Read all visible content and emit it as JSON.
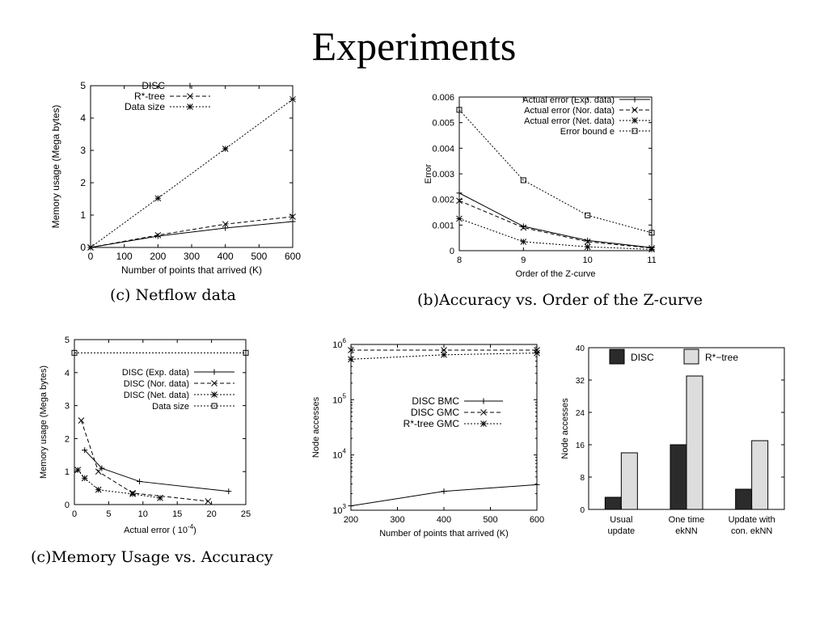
{
  "slide": {
    "title": "Experiments"
  },
  "colors": {
    "ink": "#000000",
    "bar_dark": "#2b2b2b",
    "bar_light": "#dddddd",
    "background": "#ffffff"
  },
  "chart_data": [
    {
      "type": "line",
      "caption": "(c) Netflow data",
      "xlabel": "Number of points that arrived (K)",
      "ylabel": "Memory usage (Mega bytes)",
      "xlim": [
        0,
        600
      ],
      "ylim": [
        0,
        5
      ],
      "xticks": [
        0,
        100,
        200,
        300,
        400,
        500,
        600
      ],
      "yticks": [
        0,
        1,
        2,
        3,
        4,
        5
      ],
      "legend_position": "top-left",
      "series": [
        {
          "name": "DISC",
          "marker": "plus",
          "dash": "solid",
          "x": [
            0,
            200,
            400,
            600
          ],
          "y": [
            0,
            0.35,
            0.6,
            0.8
          ]
        },
        {
          "name": "R*-tree",
          "marker": "cross",
          "dash": "dashed",
          "x": [
            0,
            200,
            400,
            600
          ],
          "y": [
            0,
            0.38,
            0.72,
            0.95
          ]
        },
        {
          "name": "Data size",
          "marker": "star",
          "dash": "dotted",
          "x": [
            0,
            200,
            400,
            600
          ],
          "y": [
            0,
            1.52,
            3.05,
            4.58
          ]
        }
      ]
    },
    {
      "type": "line",
      "caption": "(b)Accuracy vs. Order of the Z-curve",
      "xlabel": "Order of the Z-curve",
      "ylabel": "Error",
      "xlim": [
        8,
        11
      ],
      "ylim": [
        0,
        0.006
      ],
      "xticks": [
        8,
        9,
        10,
        11
      ],
      "yticks": [
        0,
        0.001,
        0.002,
        0.003,
        0.004,
        0.005,
        0.006
      ],
      "ytick_labels": [
        "0",
        "0.001",
        "0.002",
        "0.003",
        "0.004",
        "0.005",
        "0.006"
      ],
      "legend_position": "top-right",
      "series": [
        {
          "name": "Actual error (Exp. data)",
          "marker": "plus",
          "dash": "solid",
          "x": [
            8,
            9,
            10,
            11
          ],
          "y": [
            0.00225,
            0.00095,
            0.0004,
            0.00012
          ]
        },
        {
          "name": "Actual error (Nor. data)",
          "marker": "cross",
          "dash": "dashed",
          "x": [
            8,
            9,
            10,
            11
          ],
          "y": [
            0.00195,
            0.0009,
            0.00035,
            0.0001
          ]
        },
        {
          "name": "Actual error (Net. data)",
          "marker": "star",
          "dash": "dotted",
          "x": [
            8,
            9,
            10,
            11
          ],
          "y": [
            0.00125,
            0.00035,
            0.00015,
            5e-05
          ]
        },
        {
          "name": "Error bound e",
          "marker": "square",
          "dash": "dotted",
          "x": [
            8,
            9,
            10,
            11
          ],
          "y": [
            0.0055,
            0.00275,
            0.00138,
            0.0007
          ]
        }
      ]
    },
    {
      "type": "line",
      "caption": "(c)Memory Usage vs. Accuracy",
      "xlabel": "Actual error ( 10",
      "xlabel_sup": "-4",
      "xlabel_end": ")",
      "ylabel": "Memory usage (Mega bytes)",
      "xlim": [
        0,
        25
      ],
      "ylim": [
        0,
        5
      ],
      "xticks": [
        0,
        5,
        10,
        15,
        20,
        25
      ],
      "yticks": [
        0,
        1,
        2,
        3,
        4,
        5
      ],
      "legend_position": "right",
      "series": [
        {
          "name": "DISC (Exp. data)",
          "marker": "plus",
          "dash": "solid",
          "x": [
            1.5,
            4,
            9.5,
            22.5
          ],
          "y": [
            1.65,
            1.1,
            0.7,
            0.4
          ]
        },
        {
          "name": "DISC (Nor. data)",
          "marker": "cross",
          "dash": "dashed",
          "x": [
            1,
            3.5,
            8.5,
            19.5
          ],
          "y": [
            2.55,
            1.0,
            0.35,
            0.1
          ]
        },
        {
          "name": "DISC (Net. data)",
          "marker": "star",
          "dash": "dotted",
          "x": [
            0.5,
            1.5,
            3.5,
            8.5,
            12.5
          ],
          "y": [
            1.05,
            0.8,
            0.45,
            0.32,
            0.2
          ]
        },
        {
          "name": "Data size",
          "marker": "square",
          "dash": "dotted",
          "x": [
            0,
            25
          ],
          "y": [
            4.6,
            4.6
          ]
        }
      ]
    },
    {
      "type": "line",
      "caption": "",
      "xlabel": "Number of points that arrived (K)",
      "ylabel": "Node accesses",
      "log_y": true,
      "xlim": [
        200,
        600
      ],
      "ylim": [
        1000,
        1000000
      ],
      "xticks": [
        200,
        300,
        400,
        500,
        600
      ],
      "yticks": [
        1000,
        10000,
        100000,
        1000000
      ],
      "ytick_exponents": [
        "3",
        "4",
        "5",
        "6"
      ],
      "ytick_base": "10",
      "legend_position": "center-right",
      "series": [
        {
          "name": "DISC BMC",
          "marker": "plus",
          "dash": "solid",
          "x": [
            200,
            400,
            600
          ],
          "y": [
            1200,
            2200,
            2900
          ]
        },
        {
          "name": "DISC GMC",
          "marker": "cross",
          "dash": "dashed",
          "x": [
            200,
            400,
            600
          ],
          "y": [
            790000,
            790000,
            790000
          ]
        },
        {
          "name": "R*-tree GMC",
          "marker": "star",
          "dash": "dotted",
          "x": [
            200,
            400,
            600
          ],
          "y": [
            540000,
            650000,
            700000
          ]
        }
      ]
    },
    {
      "type": "bar",
      "caption": "",
      "xlabel": "",
      "ylabel": "Node accesses",
      "ylim": [
        0,
        40
      ],
      "yticks": [
        0,
        8,
        16,
        24,
        32,
        40
      ],
      "legend_position": "top",
      "categories": [
        [
          "Usual",
          "update"
        ],
        [
          "One time",
          "ekNN"
        ],
        [
          "Update with",
          "con. ekNN"
        ]
      ],
      "series": [
        {
          "name": "DISC",
          "color": "#2b2b2b",
          "values": [
            3,
            16,
            5
          ]
        },
        {
          "name": "R*−tree",
          "color": "#dddddd",
          "values": [
            14,
            33,
            17
          ]
        }
      ]
    }
  ]
}
